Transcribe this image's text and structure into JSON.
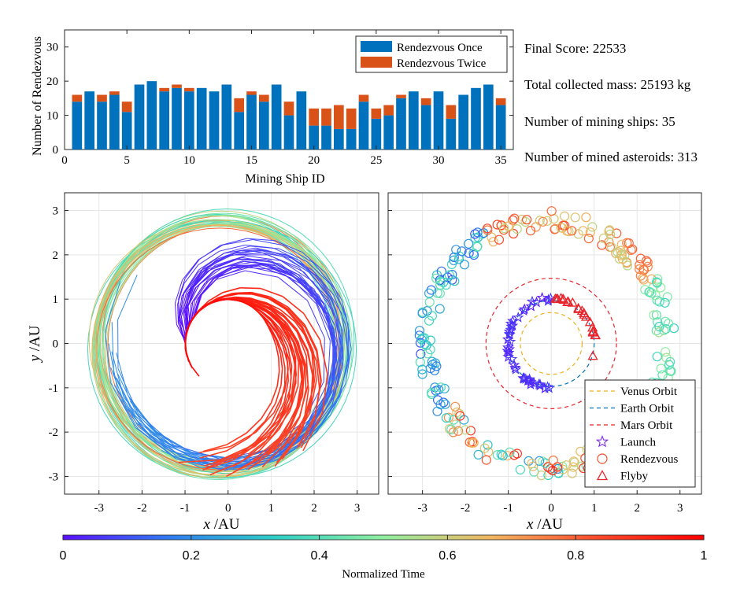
{
  "colors": {
    "once": "#0072BD",
    "twice": "#D95319",
    "venus": "#EDB120",
    "earth": "#0072BD",
    "mars": "#E8252B",
    "launch": "#7E2FE0",
    "rendezvous": "#F0502F",
    "flyby": "#E8252B",
    "grid": "#E6E6E6"
  },
  "colormap": [
    "#5A0FFF",
    "#2F7BF0",
    "#2FCFC5",
    "#8FEFA0",
    "#F2B660",
    "#FA4A2A",
    "#FF0000"
  ],
  "stats": {
    "score": "Final Score: 22533",
    "mass": "Total collected mass: 25193 kg",
    "ships": "Number of mining ships: 35",
    "asteroids": "Number of mined asteroids: 313"
  },
  "chart_data": [
    {
      "type": "bar",
      "stacked": true,
      "xlabel": "Mining Ship ID",
      "ylabel": "Number of Rendezvous",
      "xlim": [
        0,
        36
      ],
      "ylim": [
        0,
        35
      ],
      "xticks": [
        "0",
        "5",
        "10",
        "15",
        "20",
        "25",
        "30",
        "35"
      ],
      "yticks": [
        "0",
        "10",
        "20",
        "30"
      ],
      "legend_position": "top-right",
      "categories": [
        1,
        2,
        3,
        4,
        5,
        6,
        7,
        8,
        9,
        10,
        11,
        12,
        13,
        14,
        15,
        16,
        17,
        18,
        19,
        20,
        21,
        22,
        23,
        24,
        25,
        26,
        27,
        28,
        29,
        30,
        31,
        32,
        33,
        34,
        35
      ],
      "series": [
        {
          "name": "Rendezvous Once",
          "values": [
            14,
            17,
            14,
            16,
            11,
            19,
            20,
            17,
            18,
            17,
            18,
            17,
            19,
            11,
            16,
            14,
            19,
            10,
            17,
            7,
            7,
            6,
            6,
            14,
            9,
            10,
            15,
            17,
            13,
            17,
            9,
            16,
            18,
            19,
            13
          ]
        },
        {
          "name": "Rendezvous Twice",
          "values": [
            2,
            0,
            2,
            1,
            3,
            0,
            0,
            1,
            1,
            1,
            0,
            0,
            0,
            4,
            1,
            2,
            0,
            4,
            0,
            5,
            5,
            7,
            6,
            2,
            3,
            3,
            1,
            0,
            2,
            0,
            4,
            0,
            0,
            0,
            2
          ]
        }
      ]
    },
    {
      "type": "line",
      "description_free": true,
      "xlabel": "x /AU",
      "ylabel": "y /AU",
      "xlim": [
        -3.8,
        3.5
      ],
      "ylim": [
        -3.4,
        3.4
      ],
      "xticks": [
        "-3",
        "-2",
        "-1",
        "0",
        "1",
        "2",
        "3"
      ],
      "yticks": [
        "-3",
        "-2",
        "-1",
        "0",
        "1",
        "2",
        "3"
      ],
      "trajectory_count": 60,
      "grid": true
    },
    {
      "type": "scatter",
      "xlabel": "x /AU",
      "xlim": [
        -3.8,
        3.5
      ],
      "ylim": [
        -3.4,
        3.4
      ],
      "xticks": [
        "-3",
        "-2",
        "-1",
        "0",
        "1",
        "2",
        "3"
      ],
      "legend_position": "bottom-right",
      "legend": [
        "Venus Orbit",
        "Earth Orbit",
        "Mars Orbit",
        "Launch",
        "Rendezvous",
        "Flyby"
      ],
      "orbit_radii": {
        "venus": 0.72,
        "earth": 1.0,
        "mars": 1.52
      },
      "grid": true
    },
    {
      "type": "colorbar",
      "label": "Normalized Time",
      "ticks": [
        "0",
        "0.2",
        "0.4",
        "0.6",
        "0.8",
        "1"
      ],
      "range": [
        0,
        1
      ]
    }
  ]
}
